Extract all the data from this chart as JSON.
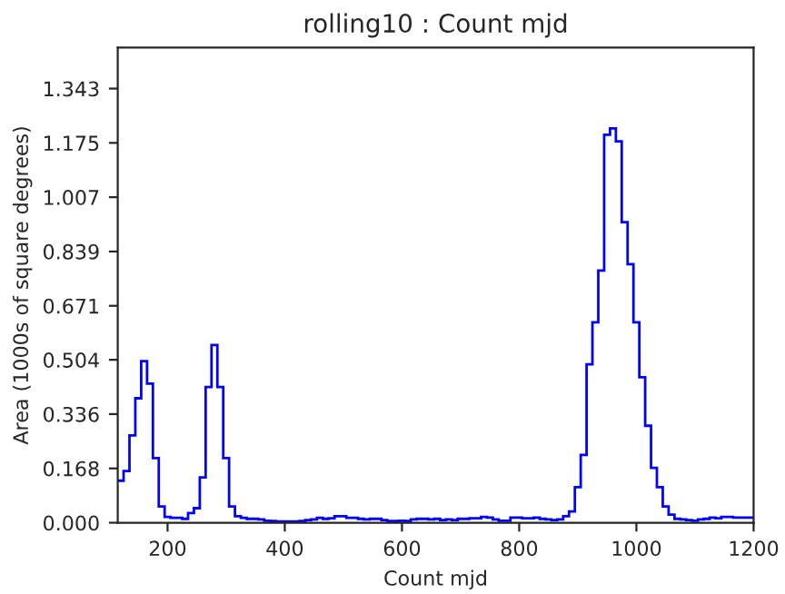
{
  "chart_data": {
    "type": "histogram",
    "title": "rolling10 : Count mjd",
    "xlabel": "Count mjd",
    "ylabel": "Area (1000s of square degrees)",
    "color": "#0000ff",
    "bins": [
      115,
      125,
      135,
      145,
      155,
      165,
      175,
      185,
      195,
      205,
      215,
      225,
      235,
      245,
      255,
      265,
      275,
      285,
      295,
      305,
      315,
      325,
      335,
      345,
      355,
      365,
      375,
      385,
      395,
      405,
      415,
      425,
      435,
      445,
      455,
      465,
      475,
      485,
      495,
      505,
      515,
      525,
      535,
      545,
      555,
      565,
      575,
      585,
      595,
      605,
      615,
      625,
      635,
      645,
      655,
      665,
      675,
      685,
      695,
      705,
      715,
      725,
      735,
      745,
      755,
      765,
      775,
      785,
      795,
      805,
      815,
      825,
      835,
      845,
      855,
      865,
      875,
      885,
      895,
      905,
      915,
      925,
      935,
      945,
      955,
      965,
      975,
      985,
      995,
      1005,
      1015,
      1025,
      1035,
      1045,
      1055,
      1065,
      1075,
      1085,
      1095,
      1105,
      1115,
      1125,
      1135,
      1145,
      1155,
      1165,
      1175,
      1185,
      1195,
      1200
    ],
    "values": [
      0.13,
      0.16,
      0.27,
      0.385,
      0.5,
      0.43,
      0.2,
      0.05,
      0.018,
      0.015,
      0.015,
      0.012,
      0.03,
      0.045,
      0.14,
      0.42,
      0.55,
      0.42,
      0.2,
      0.05,
      0.02,
      0.015,
      0.012,
      0.012,
      0.01,
      0.006,
      0.005,
      0.004,
      0.004,
      0.004,
      0.004,
      0.005,
      0.008,
      0.01,
      0.015,
      0.012,
      0.014,
      0.02,
      0.02,
      0.015,
      0.015,
      0.012,
      0.01,
      0.012,
      0.012,
      0.008,
      0.005,
      0.005,
      0.006,
      0.005,
      0.01,
      0.012,
      0.012,
      0.01,
      0.012,
      0.008,
      0.01,
      0.008,
      0.012,
      0.012,
      0.014,
      0.014,
      0.018,
      0.016,
      0.01,
      0.006,
      0.006,
      0.016,
      0.016,
      0.014,
      0.014,
      0.016,
      0.012,
      0.01,
      0.008,
      0.01,
      0.02,
      0.035,
      0.11,
      0.21,
      0.49,
      0.62,
      0.78,
      1.2,
      1.22,
      1.18,
      0.93,
      0.8,
      0.62,
      0.45,
      0.3,
      0.17,
      0.11,
      0.05,
      0.025,
      0.012,
      0.01,
      0.008,
      0.006,
      0.01,
      0.012,
      0.016,
      0.014,
      0.018,
      0.018,
      0.016,
      0.016,
      0.016,
      0.016
    ],
    "xlim": [
      115,
      1200
    ],
    "xticks": [
      200,
      400,
      600,
      800,
      1000,
      1200
    ],
    "ylim": [
      0,
      1.47
    ],
    "yticks": [
      {
        "value": 0,
        "label": "0.000"
      },
      {
        "value": 0.168,
        "label": "0.168"
      },
      {
        "value": 0.336,
        "label": "0.336"
      },
      {
        "value": 0.504,
        "label": "0.504"
      },
      {
        "value": 0.671,
        "label": "0.671"
      },
      {
        "value": 0.839,
        "label": "0.839"
      },
      {
        "value": 1.007,
        "label": "1.007"
      },
      {
        "value": 1.175,
        "label": "1.175"
      },
      {
        "value": 1.343,
        "label": "1.343"
      }
    ],
    "grid": false
  }
}
